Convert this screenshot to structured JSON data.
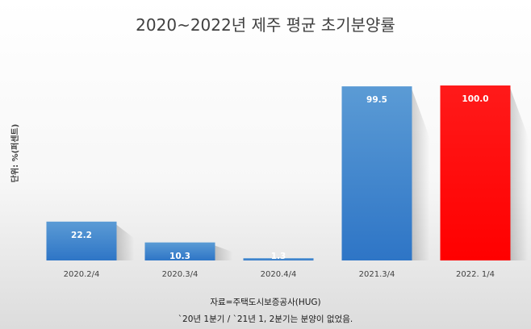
{
  "chart_data": {
    "type": "bar",
    "title": "2020~2022년 제주 평균 초기분양률",
    "ylabel": "단위: %(퍼센트)",
    "xlabel": "",
    "categories": [
      "2020.2/4",
      "2020.3/4",
      "2020.4/4",
      "2021.3/4",
      "2022. 1/4"
    ],
    "values": [
      22.2,
      10.3,
      1.3,
      99.5,
      100.0
    ],
    "value_labels": [
      "22.2",
      "10.3",
      "1.3",
      "99.5",
      "100.0"
    ],
    "colors": [
      "#3f88d0",
      "#3f88d0",
      "#3f88d0",
      "#3f88d0",
      "#ff0000"
    ],
    "ylim": [
      0,
      100
    ],
    "grid": false,
    "legend": "none",
    "notes": [
      "자료=주택도시보증공사(HUG)",
      "`20년 1분기 / `21년 1, 2분기는 분양이 없었음."
    ]
  }
}
